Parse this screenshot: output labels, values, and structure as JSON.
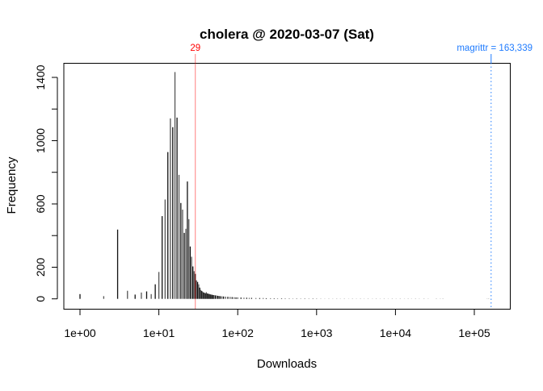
{
  "chart_data": {
    "type": "bar",
    "title": "cholera @ 2020-03-07 (Sat)",
    "xlabel": "Downloads",
    "ylabel": "Frequency",
    "x_scale": "log",
    "xlim": [
      0.6,
      300000
    ],
    "ylim": [
      0,
      1400
    ],
    "x_ticks": [
      1,
      10,
      100,
      1000,
      10000,
      100000
    ],
    "x_tick_labels": [
      "1e+00",
      "1e+01",
      "1e+02",
      "1e+03",
      "1e+04",
      "1e+05"
    ],
    "y_ticks": [
      0,
      200,
      400,
      600,
      800,
      1000,
      1200,
      1400
    ],
    "y_tick_labels": [
      "0",
      "200",
      "",
      "600",
      "",
      "1000",
      "",
      "1400"
    ],
    "grid": false,
    "bar_color": "#000000",
    "points": [
      [
        1,
        30
      ],
      [
        2,
        17
      ],
      [
        3,
        438
      ],
      [
        4,
        51
      ],
      [
        5,
        27
      ],
      [
        6,
        40
      ],
      [
        7,
        47
      ],
      [
        8,
        30
      ],
      [
        9,
        92
      ],
      [
        10,
        170
      ],
      [
        11,
        523
      ],
      [
        12,
        628
      ],
      [
        13,
        928
      ],
      [
        14,
        1141
      ],
      [
        15,
        1085
      ],
      [
        16,
        1434
      ],
      [
        17,
        1146
      ],
      [
        18,
        784
      ],
      [
        19,
        606
      ],
      [
        20,
        564
      ],
      [
        21,
        417
      ],
      [
        22,
        443
      ],
      [
        23,
        742
      ],
      [
        24,
        504
      ],
      [
        25,
        331
      ],
      [
        26,
        266
      ],
      [
        27,
        205
      ],
      [
        28,
        175
      ],
      [
        29,
        158
      ],
      [
        30,
        117
      ],
      [
        31,
        107
      ],
      [
        32,
        92
      ],
      [
        33,
        71
      ],
      [
        34,
        56
      ],
      [
        35,
        50
      ],
      [
        36,
        45
      ],
      [
        37,
        40
      ],
      [
        38,
        38
      ],
      [
        39,
        35
      ],
      [
        40,
        42
      ],
      [
        41,
        34
      ],
      [
        42,
        33
      ],
      [
        43,
        31
      ],
      [
        44,
        30
      ],
      [
        45,
        28
      ],
      [
        46,
        27
      ],
      [
        47,
        26
      ],
      [
        48,
        25
      ],
      [
        49,
        24
      ],
      [
        50,
        24
      ],
      [
        52,
        22
      ],
      [
        54,
        21
      ],
      [
        56,
        19
      ],
      [
        58,
        18
      ],
      [
        60,
        17
      ],
      [
        63,
        16
      ],
      [
        66,
        15
      ],
      [
        70,
        14
      ],
      [
        75,
        13
      ],
      [
        80,
        12
      ],
      [
        85,
        11
      ],
      [
        90,
        10
      ],
      [
        95,
        9
      ],
      [
        100,
        9
      ],
      [
        110,
        8
      ],
      [
        120,
        7
      ],
      [
        130,
        7
      ],
      [
        140,
        6
      ],
      [
        150,
        6
      ],
      [
        170,
        5
      ],
      [
        190,
        5
      ],
      [
        210,
        5
      ],
      [
        230,
        4
      ],
      [
        260,
        4
      ],
      [
        290,
        3
      ],
      [
        320,
        3
      ],
      [
        360,
        3
      ],
      [
        400,
        3
      ],
      [
        450,
        2
      ],
      [
        500,
        2
      ],
      [
        560,
        2
      ],
      [
        630,
        2
      ],
      [
        710,
        2
      ],
      [
        800,
        2
      ],
      [
        900,
        2
      ],
      [
        1000,
        2
      ],
      [
        1130,
        1
      ],
      [
        1270,
        1
      ],
      [
        1430,
        1
      ],
      [
        1600,
        1
      ],
      [
        1800,
        1
      ],
      [
        2000,
        1
      ],
      [
        2250,
        1
      ],
      [
        2550,
        1
      ],
      [
        2850,
        1
      ],
      [
        3200,
        1
      ],
      [
        3600,
        1
      ],
      [
        4000,
        1
      ],
      [
        4500,
        1
      ],
      [
        5100,
        1
      ],
      [
        5700,
        1
      ],
      [
        6400,
        1
      ],
      [
        7200,
        1
      ],
      [
        8100,
        1
      ],
      [
        9100,
        1
      ],
      [
        10200,
        1
      ],
      [
        11500,
        1
      ],
      [
        13000,
        1
      ],
      [
        14500,
        1
      ],
      [
        16000,
        1
      ],
      [
        18000,
        1
      ],
      [
        20000,
        1
      ],
      [
        23000,
        1
      ],
      [
        26000,
        1
      ],
      [
        33000,
        1
      ],
      [
        37000,
        1
      ],
      [
        40000,
        1
      ],
      [
        145000,
        1
      ],
      [
        152000,
        1
      ]
    ],
    "annotations": [
      {
        "label": "29",
        "x": 29,
        "color": "#ff0000",
        "style": "solid"
      },
      {
        "label": "magrittr = 163,339",
        "x": 163339,
        "color": "#1e7bff",
        "style": "dotted"
      }
    ]
  }
}
